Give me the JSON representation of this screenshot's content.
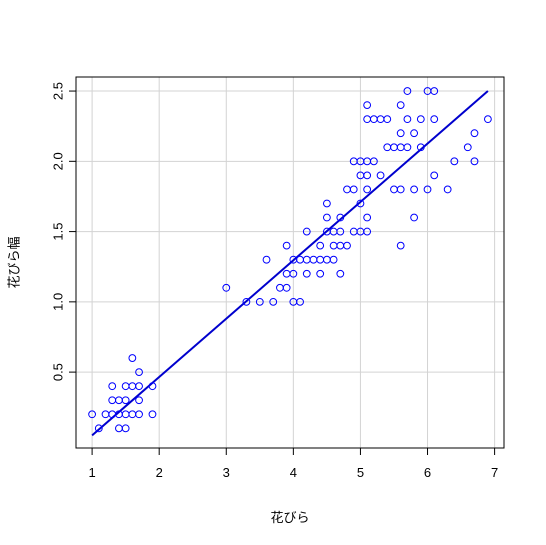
{
  "chart_data": {
    "type": "scatter",
    "title": "",
    "xlabel": "花びら",
    "ylabel": "花びら幅",
    "xlim": [
      0.76,
      7.14
    ],
    "ylim": [
      -0.04,
      2.6
    ],
    "grid": true,
    "point_color": "#0000ff",
    "line_color": "#0000cd",
    "x_ticks": [
      {
        "value": 1,
        "label": "1"
      },
      {
        "value": 2,
        "label": "2"
      },
      {
        "value": 3,
        "label": "3"
      },
      {
        "value": 4,
        "label": "4"
      },
      {
        "value": 5,
        "label": "5"
      },
      {
        "value": 6,
        "label": "6"
      },
      {
        "value": 7,
        "label": "7"
      }
    ],
    "y_ticks": [
      {
        "value": 0.5,
        "label": "0.5"
      },
      {
        "value": 1.0,
        "label": "1.0"
      },
      {
        "value": 1.5,
        "label": "1.5"
      },
      {
        "value": 2.0,
        "label": "2.0"
      },
      {
        "value": 2.5,
        "label": "2.5"
      }
    ],
    "regression_line": {
      "x": [
        1.0,
        6.9
      ],
      "y": [
        0.05,
        2.5
      ]
    },
    "series": [
      {
        "points": [
          [
            1.0,
            0.2
          ],
          [
            1.1,
            0.1
          ],
          [
            1.2,
            0.2
          ],
          [
            1.3,
            0.2
          ],
          [
            1.3,
            0.3
          ],
          [
            1.3,
            0.4
          ],
          [
            1.4,
            0.1
          ],
          [
            1.4,
            0.2
          ],
          [
            1.4,
            0.3
          ],
          [
            1.5,
            0.1
          ],
          [
            1.5,
            0.2
          ],
          [
            1.5,
            0.3
          ],
          [
            1.5,
            0.4
          ],
          [
            1.6,
            0.2
          ],
          [
            1.6,
            0.4
          ],
          [
            1.6,
            0.6
          ],
          [
            1.7,
            0.2
          ],
          [
            1.7,
            0.3
          ],
          [
            1.7,
            0.4
          ],
          [
            1.7,
            0.5
          ],
          [
            1.9,
            0.2
          ],
          [
            1.9,
            0.4
          ],
          [
            3.0,
            1.1
          ],
          [
            3.3,
            1.0
          ],
          [
            3.5,
            1.0
          ],
          [
            3.6,
            1.3
          ],
          [
            3.7,
            1.0
          ],
          [
            3.8,
            1.1
          ],
          [
            3.9,
            1.1
          ],
          [
            3.9,
            1.2
          ],
          [
            3.9,
            1.4
          ],
          [
            4.0,
            1.0
          ],
          [
            4.0,
            1.2
          ],
          [
            4.0,
            1.3
          ],
          [
            4.1,
            1.0
          ],
          [
            4.1,
            1.3
          ],
          [
            4.2,
            1.2
          ],
          [
            4.2,
            1.3
          ],
          [
            4.2,
            1.5
          ],
          [
            4.3,
            1.3
          ],
          [
            4.4,
            1.2
          ],
          [
            4.4,
            1.3
          ],
          [
            4.4,
            1.4
          ],
          [
            4.5,
            1.3
          ],
          [
            4.5,
            1.5
          ],
          [
            4.5,
            1.6
          ],
          [
            4.5,
            1.7
          ],
          [
            4.6,
            1.3
          ],
          [
            4.6,
            1.4
          ],
          [
            4.6,
            1.5
          ],
          [
            4.7,
            1.2
          ],
          [
            4.7,
            1.4
          ],
          [
            4.7,
            1.5
          ],
          [
            4.7,
            1.6
          ],
          [
            4.8,
            1.4
          ],
          [
            4.8,
            1.8
          ],
          [
            4.9,
            1.5
          ],
          [
            4.9,
            1.8
          ],
          [
            4.9,
            2.0
          ],
          [
            5.0,
            1.5
          ],
          [
            5.0,
            1.7
          ],
          [
            5.0,
            1.9
          ],
          [
            5.0,
            2.0
          ],
          [
            5.1,
            1.5
          ],
          [
            5.1,
            1.6
          ],
          [
            5.1,
            1.8
          ],
          [
            5.1,
            1.9
          ],
          [
            5.1,
            2.0
          ],
          [
            5.1,
            2.3
          ],
          [
            5.1,
            2.4
          ],
          [
            5.2,
            2.0
          ],
          [
            5.2,
            2.3
          ],
          [
            5.3,
            1.9
          ],
          [
            5.3,
            2.3
          ],
          [
            5.4,
            2.1
          ],
          [
            5.4,
            2.3
          ],
          [
            5.5,
            1.8
          ],
          [
            5.5,
            2.1
          ],
          [
            5.6,
            1.4
          ],
          [
            5.6,
            1.8
          ],
          [
            5.6,
            2.1
          ],
          [
            5.6,
            2.2
          ],
          [
            5.6,
            2.4
          ],
          [
            5.7,
            2.1
          ],
          [
            5.7,
            2.3
          ],
          [
            5.7,
            2.5
          ],
          [
            5.8,
            1.6
          ],
          [
            5.8,
            1.8
          ],
          [
            5.8,
            2.2
          ],
          [
            5.9,
            2.1
          ],
          [
            5.9,
            2.3
          ],
          [
            6.0,
            1.8
          ],
          [
            6.0,
            2.5
          ],
          [
            6.1,
            1.9
          ],
          [
            6.1,
            2.3
          ],
          [
            6.1,
            2.5
          ],
          [
            6.3,
            1.8
          ],
          [
            6.4,
            2.0
          ],
          [
            6.6,
            2.1
          ],
          [
            6.7,
            2.0
          ],
          [
            6.7,
            2.2
          ],
          [
            6.9,
            2.3
          ]
        ]
      }
    ]
  }
}
